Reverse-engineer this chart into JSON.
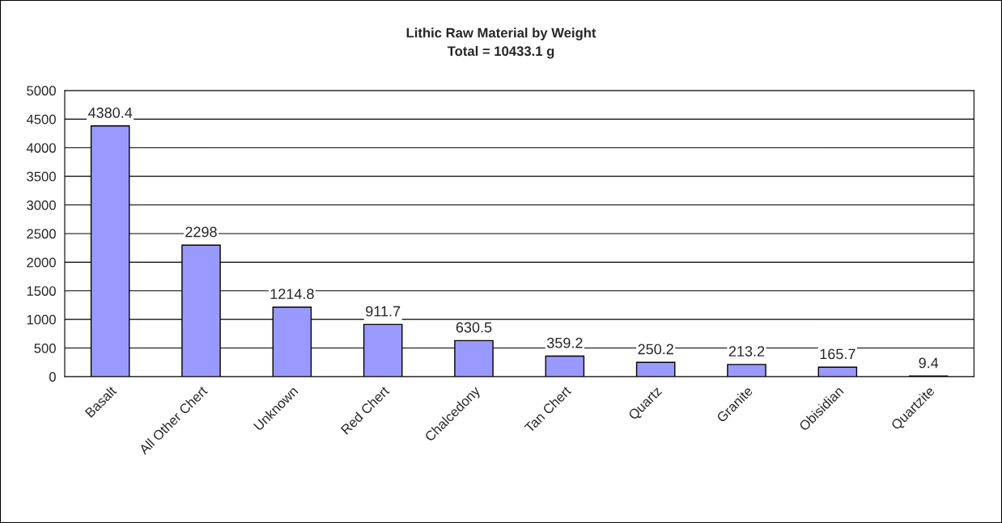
{
  "chart_data": {
    "type": "bar",
    "title": "Lithic Raw Material by Weight",
    "subtitle": "Total = 10433.1 g",
    "categories": [
      "Basalt",
      "All Other Chert",
      "Unknown",
      "Red Chert",
      "Chalcedony",
      "Tan Chert",
      "Quartz",
      "Granite",
      "Obisidian",
      "Quartzite"
    ],
    "values": [
      4380.4,
      2298,
      1214.8,
      911.7,
      630.5,
      359.2,
      250.2,
      213.2,
      165.7,
      9.4
    ],
    "color": "#9999ff",
    "ylim": [
      0,
      5000
    ],
    "yticks": [
      0,
      500,
      1000,
      1500,
      2000,
      2500,
      3000,
      3500,
      4000,
      4500,
      5000
    ],
    "grid": "y",
    "data_labels": true
  }
}
